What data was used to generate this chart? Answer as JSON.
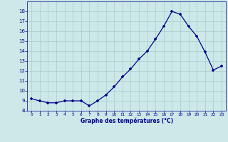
{
  "x": [
    0,
    1,
    2,
    3,
    4,
    5,
    6,
    7,
    8,
    9,
    10,
    11,
    12,
    13,
    14,
    15,
    16,
    17,
    18,
    19,
    20,
    21,
    22,
    23
  ],
  "y": [
    9.2,
    9.0,
    8.8,
    8.8,
    9.0,
    9.0,
    9.0,
    8.5,
    9.0,
    9.6,
    10.4,
    11.4,
    12.2,
    13.2,
    14.0,
    15.2,
    16.5,
    18.0,
    17.7,
    16.5,
    15.5,
    13.9,
    12.1,
    12.5
  ],
  "xlabel": "Graphe des températures (°C)",
  "ylim": [
    8,
    19
  ],
  "xlim": [
    -0.5,
    23.5
  ],
  "yticks": [
    8,
    9,
    10,
    11,
    12,
    13,
    14,
    15,
    16,
    17,
    18
  ],
  "xticks": [
    0,
    1,
    2,
    3,
    4,
    5,
    6,
    7,
    8,
    9,
    10,
    11,
    12,
    13,
    14,
    15,
    16,
    17,
    18,
    19,
    20,
    21,
    22,
    23
  ],
  "line_color": "#00008B",
  "marker_color": "#00008B",
  "bg_color": "#cce8e8",
  "grid_color": "#aacccc"
}
